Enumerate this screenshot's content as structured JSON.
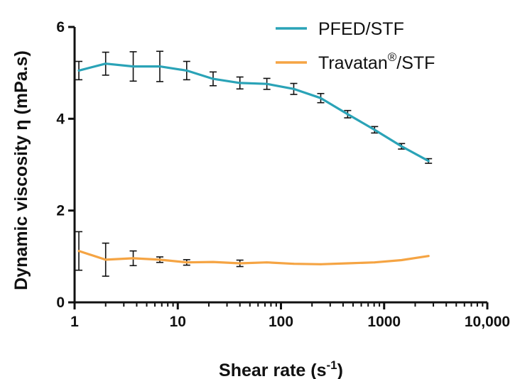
{
  "chart_data": {
    "type": "line",
    "xscale": "log",
    "xlim": [
      1,
      10000
    ],
    "ylim": [
      0,
      6
    ],
    "xticks": [
      1,
      10,
      100,
      1000,
      10000
    ],
    "xtick_labels": [
      "1",
      "10",
      "100",
      "1000",
      "10,000"
    ],
    "yticks": [
      0,
      2,
      4,
      6
    ],
    "ytick_labels": [
      "0",
      "2",
      "4",
      "6"
    ],
    "xlabel": "Shear rate (s",
    "xlabel_sup": "-1",
    "xlabel_end": ")",
    "ylabel": "Dynamic viscosity η (mPa.s)",
    "legend_position": "top-right",
    "grid": false,
    "series": [
      {
        "name": "PFED/STF",
        "color": "#2aa3b7",
        "points": [
          {
            "x": 1.1,
            "y": 5.05,
            "err": 0.2
          },
          {
            "x": 2.0,
            "y": 5.2,
            "err": 0.25
          },
          {
            "x": 3.7,
            "y": 5.14,
            "err": 0.32
          },
          {
            "x": 6.7,
            "y": 5.14,
            "err": 0.33
          },
          {
            "x": 12.2,
            "y": 5.05,
            "err": 0.2
          },
          {
            "x": 22.0,
            "y": 4.87,
            "err": 0.15
          },
          {
            "x": 40.0,
            "y": 4.78,
            "err": 0.13
          },
          {
            "x": 73.0,
            "y": 4.76,
            "err": 0.12
          },
          {
            "x": 133.0,
            "y": 4.65,
            "err": 0.12
          },
          {
            "x": 243.0,
            "y": 4.45,
            "err": 0.1
          },
          {
            "x": 443.0,
            "y": 4.1,
            "err": 0.08
          },
          {
            "x": 808.0,
            "y": 3.76,
            "err": 0.07
          },
          {
            "x": 1474.0,
            "y": 3.4,
            "err": 0.06
          },
          {
            "x": 2690.0,
            "y": 3.08,
            "err": 0.05
          }
        ]
      },
      {
        "name": "Travatan",
        "name_sup": "®",
        "name_end": "/STF",
        "color": "#f5a443",
        "points": [
          {
            "x": 1.1,
            "y": 1.12,
            "err": 0.42
          },
          {
            "x": 2.0,
            "y": 0.93,
            "err": 0.36
          },
          {
            "x": 3.7,
            "y": 0.96,
            "err": 0.16
          },
          {
            "x": 6.7,
            "y": 0.93,
            "err": 0.06
          },
          {
            "x": 12.2,
            "y": 0.87,
            "err": 0.06
          },
          {
            "x": 22.0,
            "y": 0.88,
            "err": 0
          },
          {
            "x": 40.0,
            "y": 0.85,
            "err": 0.07
          },
          {
            "x": 73.0,
            "y": 0.87,
            "err": 0
          },
          {
            "x": 133.0,
            "y": 0.84,
            "err": 0
          },
          {
            "x": 243.0,
            "y": 0.83,
            "err": 0
          },
          {
            "x": 443.0,
            "y": 0.85,
            "err": 0
          },
          {
            "x": 808.0,
            "y": 0.87,
            "err": 0
          },
          {
            "x": 1474.0,
            "y": 0.92,
            "err": 0
          },
          {
            "x": 2690.0,
            "y": 1.01,
            "err": 0
          }
        ]
      }
    ]
  }
}
